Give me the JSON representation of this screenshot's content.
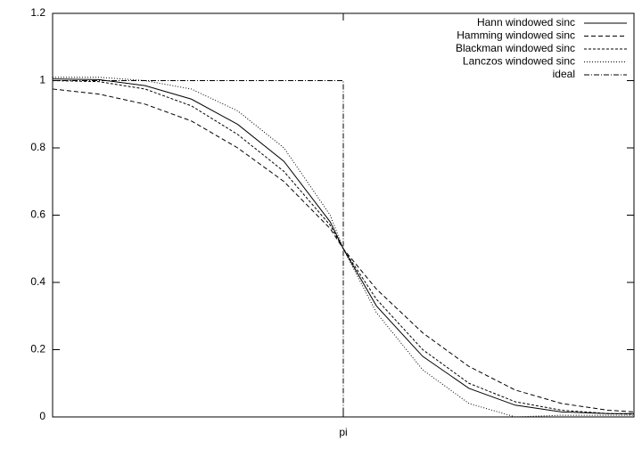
{
  "chart_data": {
    "type": "line",
    "xlim": [
      0,
      6.2832
    ],
    "ylim": [
      0,
      1.2
    ],
    "xticks": [
      {
        "value": 3.1416,
        "label": "pi"
      }
    ],
    "yticks": [
      0,
      0.2,
      0.4,
      0.6,
      0.8,
      1,
      1.2
    ],
    "legend": "top-right",
    "series": [
      {
        "name": "Hann windowed sinc",
        "color": "#000000",
        "dash": "none",
        "x": [
          0,
          0.5,
          1,
          1.5,
          2,
          2.5,
          3,
          3.1416,
          3.5,
          4,
          4.5,
          5,
          5.5,
          6,
          6.2832
        ],
        "values": [
          1.005,
          1.003,
          0.985,
          0.945,
          0.87,
          0.76,
          0.58,
          0.5,
          0.33,
          0.18,
          0.085,
          0.035,
          0.015,
          0.01,
          0.01
        ]
      },
      {
        "name": "Hamming windowed sinc",
        "color": "#000000",
        "dash": "5,3",
        "x": [
          0,
          0.5,
          1,
          1.5,
          2,
          2.5,
          3,
          3.1416,
          3.5,
          4,
          4.5,
          5,
          5.5,
          6,
          6.2832
        ],
        "values": [
          0.975,
          0.96,
          0.93,
          0.88,
          0.8,
          0.7,
          0.56,
          0.5,
          0.38,
          0.25,
          0.15,
          0.08,
          0.04,
          0.02,
          0.015
        ]
      },
      {
        "name": "Blackman windowed sinc",
        "color": "#000000",
        "dash": "3,2",
        "x": [
          0,
          0.5,
          1,
          1.5,
          2,
          2.5,
          3,
          3.1416,
          3.5,
          4,
          4.5,
          5,
          5.5,
          6,
          6.2832
        ],
        "values": [
          1.0,
          0.997,
          0.975,
          0.925,
          0.84,
          0.73,
          0.57,
          0.5,
          0.35,
          0.2,
          0.1,
          0.045,
          0.02,
          0.01,
          0.008
        ]
      },
      {
        "name": "Lanczos windowed sinc",
        "color": "#000000",
        "dash": "1,2",
        "x": [
          0,
          0.5,
          1,
          1.5,
          2,
          2.5,
          3,
          3.1416,
          3.5,
          4,
          4.5,
          5,
          5.5,
          6,
          6.2832
        ],
        "values": [
          1.01,
          1.01,
          1.0,
          0.975,
          0.91,
          0.8,
          0.6,
          0.5,
          0.31,
          0.14,
          0.04,
          0.0,
          0.005,
          0.005,
          0.005
        ]
      },
      {
        "name": "ideal",
        "color": "#000000",
        "dash": "6,2,1,2",
        "x": [
          0,
          3.1416,
          3.1416,
          6.2832
        ],
        "values": [
          1,
          1,
          0,
          0
        ]
      }
    ]
  }
}
